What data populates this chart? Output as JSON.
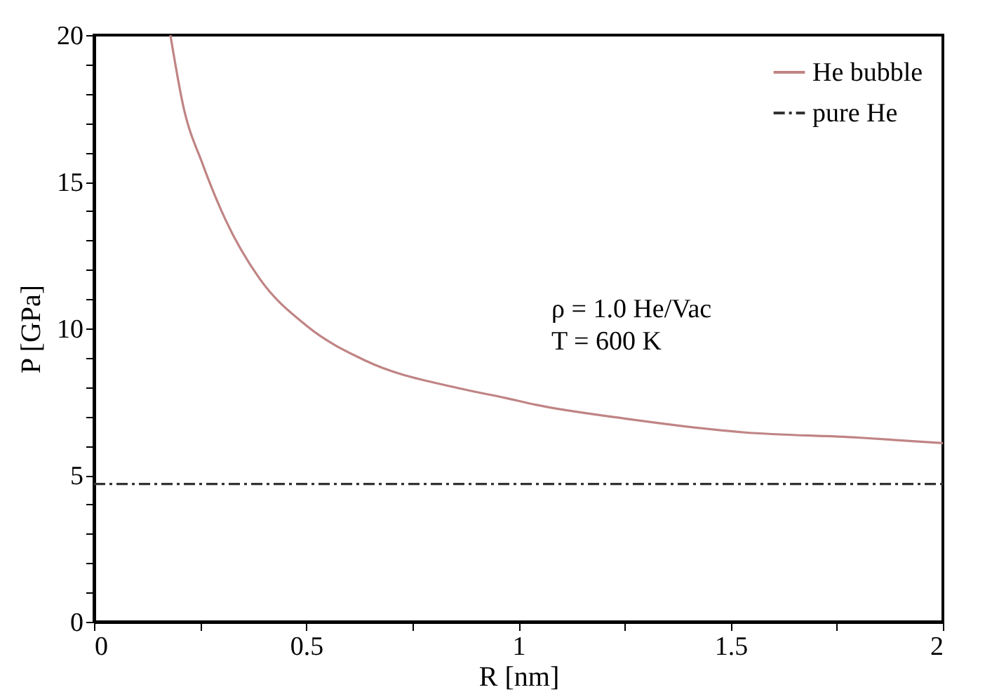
{
  "chart_data": {
    "type": "line",
    "xlabel": "R [nm]",
    "ylabel": "P [GPa]",
    "xlim": [
      0,
      2
    ],
    "ylim": [
      0,
      20
    ],
    "xticks": [
      0,
      {
        "value": 0.25,
        "label": null
      },
      0.5,
      {
        "value": 0.75,
        "label": null
      },
      1,
      {
        "value": 1.25,
        "label": null
      },
      1.5,
      {
        "value": 1.75,
        "label": null
      },
      2
    ],
    "yticks": [
      0,
      {
        "value": 1,
        "label": null
      },
      {
        "value": 2,
        "label": null
      },
      {
        "value": 3,
        "label": null
      },
      {
        "value": 4,
        "label": null
      },
      5,
      {
        "value": 6,
        "label": null
      },
      {
        "value": 7,
        "label": null
      },
      {
        "value": 8,
        "label": null
      },
      {
        "value": 9,
        "label": null
      },
      10,
      {
        "value": 11,
        "label": null
      },
      {
        "value": 12,
        "label": null
      },
      {
        "value": 13,
        "label": null
      },
      {
        "value": 14,
        "label": null
      },
      15,
      {
        "value": 16,
        "label": null
      },
      {
        "value": 17,
        "label": null
      },
      {
        "value": 18,
        "label": null
      },
      {
        "value": 19,
        "label": null
      },
      20
    ],
    "grid": false,
    "legend": "top right",
    "marker": "none",
    "series": [
      {
        "name": "He bubble",
        "color": "#c08484",
        "line_style": "solid",
        "x": [
          0.18,
          0.21,
          0.256,
          0.31,
          0.39,
          0.5,
          0.64,
          0.86,
          0.97,
          1.04,
          1.25,
          1.53,
          1.8,
          2.0
        ],
        "values": [
          20,
          17.6,
          15.6,
          13.7,
          11.7,
          10.1,
          8.9,
          7.96,
          7.63,
          7.4,
          6.93,
          6.46,
          6.28,
          6.09
        ]
      },
      {
        "name": "pure He",
        "color": "#333333",
        "line_style": "dashed",
        "x": [
          0,
          2
        ],
        "values": [
          4.7,
          4.7
        ]
      }
    ],
    "annotations": [
      "ρ = 1.0 He/Vac",
      "T = 600 K"
    ]
  }
}
